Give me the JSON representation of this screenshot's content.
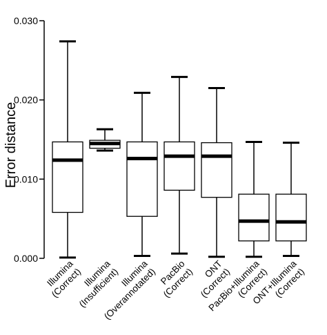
{
  "chart_data": {
    "type": "box",
    "ylabel": "Error distance",
    "ylim": [
      0,
      0.03
    ],
    "yticks": [
      0,
      0.01,
      0.02,
      0.03
    ],
    "ytick_labels": [
      "0.000",
      "0.010",
      "0.020",
      "0.030"
    ],
    "grid": false,
    "categories": [
      [
        "Illumina",
        "(Correct)"
      ],
      [
        "Illumina",
        "(Insufficient)"
      ],
      [
        "Illumina",
        "(Overannotated)"
      ],
      [
        "PacBio",
        "(Correct)"
      ],
      [
        "ONT",
        "(Correct)"
      ],
      [
        "PacBio+Illumina",
        "(Correct)"
      ],
      [
        "ONT+Illumina",
        "(Correct)"
      ]
    ],
    "boxes": [
      {
        "whisker_low": 0.0001,
        "q1": 0.0058,
        "median": 0.0124,
        "q3": 0.0147,
        "whisker_high": 0.0274
      },
      {
        "whisker_low": 0.0136,
        "q1": 0.0139,
        "median": 0.0145,
        "q3": 0.0149,
        "whisker_high": 0.0163
      },
      {
        "whisker_low": 0.0003,
        "q1": 0.0053,
        "median": 0.0126,
        "q3": 0.0147,
        "whisker_high": 0.0209
      },
      {
        "whisker_low": 0.0006,
        "q1": 0.0086,
        "median": 0.0129,
        "q3": 0.0147,
        "whisker_high": 0.0229
      },
      {
        "whisker_low": 0.0002,
        "q1": 0.0077,
        "median": 0.0129,
        "q3": 0.0146,
        "whisker_high": 0.0215
      },
      {
        "whisker_low": 0.0002,
        "q1": 0.0022,
        "median": 0.0047,
        "q3": 0.0081,
        "whisker_high": 0.0147
      },
      {
        "whisker_low": 0.0003,
        "q1": 0.0022,
        "median": 0.0046,
        "q3": 0.0081,
        "whisker_high": 0.0146
      }
    ]
  }
}
